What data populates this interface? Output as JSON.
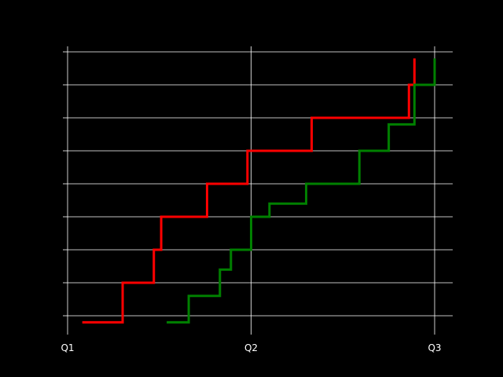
{
  "chart_data": {
    "type": "line",
    "step": "post",
    "background": "#000000",
    "axis_color": "#ffffff",
    "grid": {
      "vertical": true,
      "horizontal": true,
      "color": "#ffffff"
    },
    "title": "",
    "xlabel": "",
    "ylabel": "",
    "x_ticks": [
      {
        "value": 0,
        "label": "Q1"
      },
      {
        "value": 1,
        "label": "Q2"
      },
      {
        "value": 2,
        "label": "Q3"
      }
    ],
    "xlim": [
      0,
      2
    ],
    "ylim": [
      0,
      8
    ],
    "y_ticks": [
      0,
      1,
      2,
      3,
      4,
      5,
      6,
      7,
      8
    ],
    "series": [
      {
        "color": "#ff0000",
        "x": [
          0.08,
          0.3,
          0.47,
          0.51,
          0.76,
          0.98,
          1.33,
          1.86,
          1.89
        ],
        "y": [
          -0.2,
          1.0,
          2.0,
          3.0,
          4.0,
          5.0,
          6.0,
          7.0,
          7.8
        ]
      },
      {
        "color": "#008000",
        "x": [
          0.54,
          0.66,
          0.83,
          0.89,
          1.0,
          1.1,
          1.3,
          1.59,
          1.75,
          1.89,
          2.0
        ],
        "y": [
          -0.2,
          0.6,
          1.4,
          2.0,
          3.0,
          3.4,
          4.0,
          5.0,
          5.8,
          7.0,
          7.8
        ]
      }
    ]
  }
}
